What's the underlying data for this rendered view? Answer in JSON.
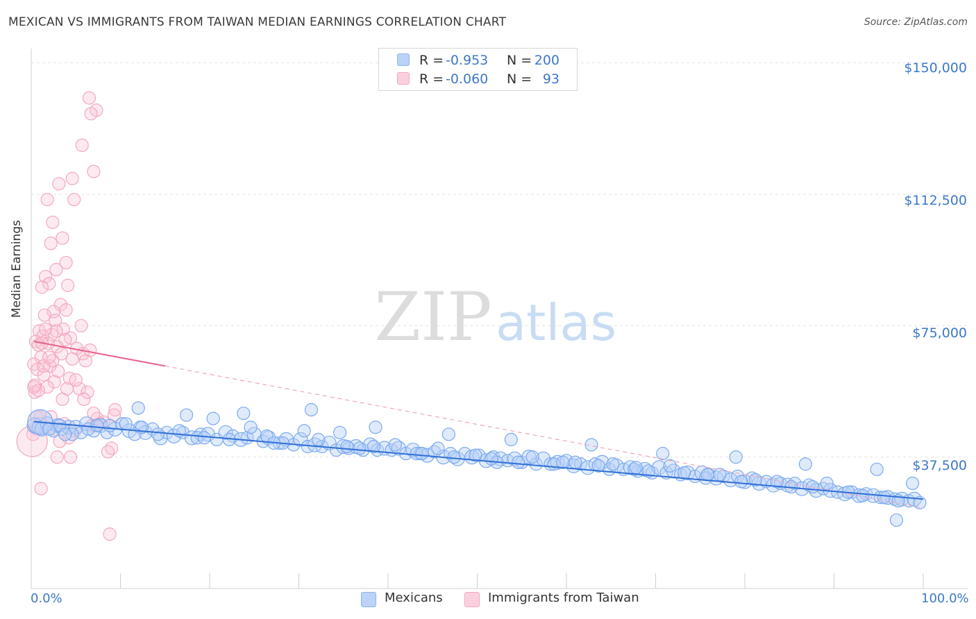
{
  "chart_data": {
    "type": "scatter",
    "title": "MEXICAN VS IMMIGRANTS FROM TAIWAN MEDIAN EARNINGS CORRELATION CHART",
    "source": "Source: ZipAtlas.com",
    "xlabel": "",
    "ylabel": "Median Earnings",
    "xlim": [
      0,
      100
    ],
    "ylim": [
      0,
      152500
    ],
    "x_tick_labels": [
      "0.0%",
      "100.0%"
    ],
    "y_ticks": [
      37500,
      75000,
      112500,
      150000
    ],
    "y_tick_labels": [
      "$37,500",
      "$75,000",
      "$112,500",
      "$150,000"
    ],
    "watermark": "ZIPatlas",
    "legend": [
      {
        "name": "Mexicans",
        "color": "#8ab4f0",
        "r_label": "R =",
        "r": "-0.953",
        "n_label": "N =",
        "n": "200"
      },
      {
        "name": "Immigrants from Taiwan",
        "color": "#f4a7bf",
        "r_label": "R =",
        "r": "-0.060",
        "n_label": "N =",
        "n": "93"
      }
    ],
    "series": [
      {
        "name": "Mexicans",
        "color": "#7aaaf0",
        "line_color": "#2f6fd6",
        "trend": {
          "x0": 0.3,
          "y0": 47600,
          "x1": 100,
          "y1": 25500
        },
        "x": [
          0.4,
          0.8,
          1.2,
          1.8,
          2.5,
          3.0,
          3.5,
          4.2,
          5.0,
          5.6,
          6.2,
          7.0,
          7.8,
          8.5,
          9.4,
          10.2,
          11.0,
          12.2,
          12.8,
          13.6,
          14.5,
          15.2,
          16.0,
          17.0,
          18.0,
          19.0,
          19.8,
          20.8,
          21.8,
          22.6,
          23.5,
          24.2,
          25.0,
          26.0,
          26.6,
          27.8,
          28.6,
          29.4,
          30.2,
          31.0,
          31.8,
          32.6,
          33.4,
          34.2,
          35.0,
          35.6,
          36.4,
          37.2,
          38.0,
          38.8,
          39.6,
          40.4,
          41.2,
          42.0,
          42.8,
          43.6,
          44.4,
          45.2,
          46.2,
          47.0,
          47.8,
          48.6,
          49.4,
          50.2,
          51.0,
          51.8,
          52.6,
          53.4,
          54.2,
          55.0,
          55.8,
          56.6,
          57.4,
          58.2,
          59.0,
          60.0,
          60.8,
          61.6,
          62.4,
          63.2,
          64.0,
          64.8,
          65.6,
          66.4,
          67.2,
          68.0,
          68.8,
          69.6,
          70.4,
          71.2,
          72.0,
          72.8,
          73.6,
          74.4,
          75.2,
          76.0,
          76.8,
          77.6,
          78.4,
          79.2,
          80.0,
          80.8,
          81.6,
          82.4,
          83.2,
          84.0,
          84.8,
          85.6,
          86.4,
          87.2,
          88.0,
          88.8,
          89.6,
          90.4,
          91.2,
          92.0,
          92.8,
          93.6,
          94.4,
          95.2,
          96.0,
          96.8,
          97.6,
          98.4,
          99.0,
          99.6,
          1.0,
          2.0,
          3.2,
          4.6,
          6.4,
          8.8,
          10.6,
          12.4,
          14.2,
          16.6,
          18.6,
          20.4,
          22.2,
          24.6,
          26.4,
          28.2,
          30.6,
          32.2,
          34.6,
          36.8,
          38.4,
          40.8,
          43.2,
          45.6,
          47.4,
          49.8,
          52.2,
          54.6,
          56.2,
          58.6,
          61.0,
          63.6,
          65.2,
          67.6,
          69.2,
          71.6,
          73.2,
          75.6,
          77.2,
          79.6,
          81.2,
          83.6,
          85.2,
          87.6,
          89.2,
          91.6,
          93.2,
          95.6,
          97.2,
          98.8,
          12.0,
          17.4,
          23.8,
          31.4,
          38.6,
          46.8,
          53.8,
          62.8,
          70.8,
          79.0,
          86.8,
          94.8,
          97.0,
          3.8,
          7.4,
          11.6,
          19.4,
          27.2,
          35.4,
          43.8,
          51.6,
          59.6,
          67.8,
          75.8
        ],
        "y": [
          46500,
          46000,
          45500,
          47000,
          45000,
          46500,
          45500,
          46000,
          46000,
          44500,
          47000,
          45000,
          46500,
          44500,
          45500,
          47000,
          45000,
          46000,
          44500,
          45500,
          43000,
          44500,
          43500,
          44500,
          43000,
          44000,
          44000,
          42500,
          44500,
          43500,
          42500,
          43000,
          44000,
          42000,
          43000,
          41500,
          42500,
          41000,
          42500,
          40500,
          41000,
          40500,
          41500,
          39500,
          40500,
          40000,
          40500,
          39500,
          41000,
          39500,
          40000,
          39500,
          40000,
          38500,
          39500,
          38500,
          38000,
          39000,
          37500,
          38500,
          37000,
          38500,
          37500,
          38000,
          36500,
          37500,
          37000,
          36500,
          37000,
          36000,
          37500,
          35500,
          37000,
          35500,
          36000,
          36500,
          35000,
          35500,
          34500,
          35500,
          36000,
          34000,
          35000,
          34000,
          34500,
          33500,
          34000,
          33000,
          34500,
          33000,
          33500,
          32500,
          33000,
          32000,
          33000,
          32500,
          31500,
          32000,
          31000,
          32000,
          30500,
          31500,
          30000,
          30500,
          29500,
          30000,
          29500,
          30000,
          28500,
          29500,
          28000,
          28500,
          28000,
          27500,
          27000,
          27500,
          26500,
          27000,
          26500,
          26000,
          26000,
          25500,
          25500,
          25000,
          25500,
          24500,
          47500,
          45500,
          46500,
          44000,
          45500,
          46500,
          47000,
          46000,
          44000,
          45000,
          43000,
          48500,
          42500,
          46000,
          43500,
          41500,
          45000,
          42500,
          44500,
          40000,
          40500,
          41000,
          38500,
          40000,
          37500,
          38000,
          36000,
          36000,
          37500,
          35500,
          36000,
          35000,
          35500,
          34000,
          33500,
          35000,
          33000,
          31500,
          32500,
          30500,
          31000,
          30500,
          29000,
          29000,
          30000,
          27500,
          26500,
          26000,
          25000,
          30000,
          51500,
          49500,
          50000,
          51000,
          46000,
          44000,
          42500,
          41000,
          38500,
          37500,
          35500,
          34000,
          19500,
          44000,
          46500,
          44000,
          43000,
          41500,
          40500,
          38500,
          37000,
          36000,
          34500,
          32500
        ],
        "r": [
          11,
          9,
          10,
          10,
          9,
          10,
          9,
          10,
          10,
          9,
          10,
          9,
          10,
          9,
          10,
          9,
          10,
          9,
          10,
          9,
          10,
          9,
          10,
          9,
          10,
          9,
          10,
          9,
          10,
          9,
          10,
          9,
          10,
          9,
          10,
          9,
          10,
          9,
          10,
          9,
          10,
          9,
          10,
          9,
          10,
          9,
          10,
          9,
          10,
          9,
          10,
          9,
          10,
          9,
          10,
          9,
          10,
          9,
          10,
          9,
          10,
          9,
          10,
          9,
          10,
          9,
          10,
          9,
          10,
          9,
          10,
          9,
          10,
          9,
          10,
          9,
          10,
          9,
          10,
          9,
          10,
          9,
          10,
          9,
          10,
          9,
          10,
          9,
          10,
          9,
          10,
          9,
          10,
          9,
          10,
          9,
          10,
          9,
          10,
          9,
          10,
          9,
          10,
          9,
          10,
          9,
          10,
          9,
          10,
          9,
          10,
          9,
          10,
          9,
          10,
          9,
          10,
          9,
          10,
          9,
          10,
          9,
          10,
          9,
          10,
          9,
          18,
          9,
          9,
          9,
          9,
          9,
          9,
          9,
          9,
          9,
          9,
          9,
          9,
          9,
          9,
          9,
          9,
          9,
          9,
          9,
          9,
          9,
          9,
          9,
          9,
          9,
          9,
          9,
          9,
          9,
          9,
          9,
          9,
          9,
          9,
          9,
          9,
          9,
          9,
          9,
          9,
          9,
          9,
          9,
          9,
          9,
          9,
          9,
          9,
          9,
          9,
          9,
          9,
          9,
          9,
          9,
          9,
          9,
          9,
          9,
          9,
          9,
          9,
          9,
          9,
          9,
          9,
          9,
          9,
          9,
          9,
          9,
          9,
          9,
          9,
          9
        ]
      },
      {
        "name": "Immigrants from Taiwan",
        "color": "#f4a7bf",
        "line_color": "#e8608a",
        "trend": {
          "x0": 0.3,
          "y0": 70500,
          "x1": 15,
          "y1": 63500
        },
        "trend_dashed": {
          "x0": 15,
          "y0": 63500,
          "x1": 100,
          "y1": 23000
        },
        "x": [
          6.5,
          7.3,
          6.7,
          5.7,
          7.0,
          4.6,
          3.1,
          1.8,
          4.8,
          2.4,
          3.5,
          2.2,
          3.9,
          2.8,
          1.6,
          2.0,
          4.1,
          1.2,
          3.3,
          2.5,
          1.5,
          2.7,
          3.6,
          0.9,
          2.3,
          1.3,
          4.4,
          3.8,
          0.5,
          1.9,
          0.8,
          2.9,
          5.1,
          3.4,
          5.8,
          1.1,
          6.1,
          0.3,
          2.1,
          0.7,
          3.0,
          1.4,
          4.3,
          2.6,
          4.0,
          5.4,
          0.4,
          6.3,
          5.9,
          9.4,
          9.3,
          1.0,
          2.2,
          7.4,
          8.1,
          7.7,
          3.7,
          1.7,
          2.6,
          0.6,
          4.9,
          0.2,
          4.2,
          3.2,
          0.6,
          0.9,
          1.8,
          5.0,
          2.4,
          4.6,
          1.2,
          6.6,
          1.6,
          3.9,
          2.8,
          5.6,
          0.4,
          0.8,
          1.4,
          2.0,
          3.5,
          7.0,
          6.8,
          2.9,
          4.4,
          9.0,
          8.6,
          1.1,
          0.5,
          0.3,
          0.1,
          8.8,
          7.2
        ],
        "y": [
          140000,
          136500,
          135500,
          126500,
          119000,
          117000,
          115500,
          111000,
          111000,
          104500,
          100000,
          98500,
          93000,
          91000,
          89000,
          87000,
          86500,
          86000,
          81000,
          79000,
          78000,
          76500,
          74000,
          73500,
          72500,
          72000,
          71500,
          71000,
          70500,
          70000,
          69500,
          69000,
          68500,
          67000,
          67000,
          66000,
          65000,
          64000,
          63500,
          62500,
          62000,
          61000,
          60000,
          59000,
          57000,
          57000,
          56000,
          56000,
          54000,
          51000,
          49500,
          49000,
          49000,
          48500,
          47500,
          47000,
          47000,
          46000,
          45500,
          45500,
          45000,
          44000,
          43000,
          42000,
          49000,
          47000,
          57500,
          59500,
          65000,
          65500,
          70000,
          68000,
          74000,
          79500,
          73500,
          75000,
          58000,
          56500,
          63500,
          66000,
          54000,
          50000,
          46500,
          37500,
          37500,
          40000,
          39000,
          28500,
          46000,
          57500,
          42000,
          15500,
          46500
        ],
        "r": [
          9,
          9,
          9,
          9,
          9,
          9,
          9,
          9,
          9,
          9,
          9,
          9,
          9,
          9,
          9,
          9,
          9,
          9,
          9,
          9,
          9,
          9,
          9,
          9,
          9,
          9,
          9,
          9,
          9,
          9,
          9,
          9,
          9,
          9,
          9,
          9,
          9,
          9,
          9,
          9,
          9,
          9,
          9,
          9,
          9,
          9,
          9,
          9,
          9,
          9,
          9,
          9,
          9,
          9,
          9,
          9,
          9,
          9,
          9,
          9,
          9,
          9,
          9,
          9,
          9,
          9,
          9,
          9,
          9,
          9,
          9,
          9,
          9,
          9,
          9,
          9,
          9,
          9,
          9,
          9,
          9,
          9,
          9,
          9,
          9,
          9,
          9,
          9,
          9,
          9,
          22,
          9,
          9
        ]
      }
    ]
  }
}
